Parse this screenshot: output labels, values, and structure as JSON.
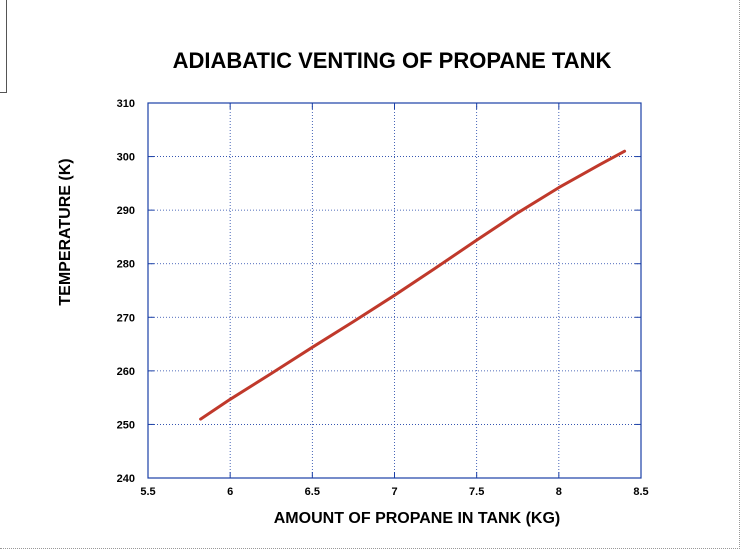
{
  "chart_data": {
    "type": "line",
    "title": "ADIABATIC VENTING OF PROPANE TANK",
    "xlabel": "AMOUNT OF PROPANE IN TANK (KG)",
    "ylabel": "TEMPERATURE (K)",
    "xlim": [
      5.5,
      8.5
    ],
    "ylim": [
      240,
      310
    ],
    "xticks": [
      5.5,
      6,
      6.5,
      7,
      7.5,
      8,
      8.5
    ],
    "yticks": [
      240,
      250,
      260,
      270,
      280,
      290,
      300,
      310
    ],
    "xtick_labels": [
      "5.5",
      "6",
      "6.5",
      "7",
      "7.5",
      "8",
      "8.5"
    ],
    "ytick_labels": [
      "240",
      "250",
      "260",
      "270",
      "280",
      "290",
      "300",
      "310"
    ],
    "grid": true,
    "legend": "none",
    "series": [
      {
        "color": "#c0392b",
        "x": [
          5.82,
          6.0,
          6.25,
          6.5,
          6.75,
          7.0,
          7.25,
          7.5,
          7.75,
          8.0,
          8.25,
          8.4
        ],
        "y": [
          251.0,
          254.7,
          259.5,
          264.4,
          269.2,
          274.1,
          279.2,
          284.4,
          289.5,
          294.2,
          298.5,
          301.0
        ]
      }
    ]
  }
}
